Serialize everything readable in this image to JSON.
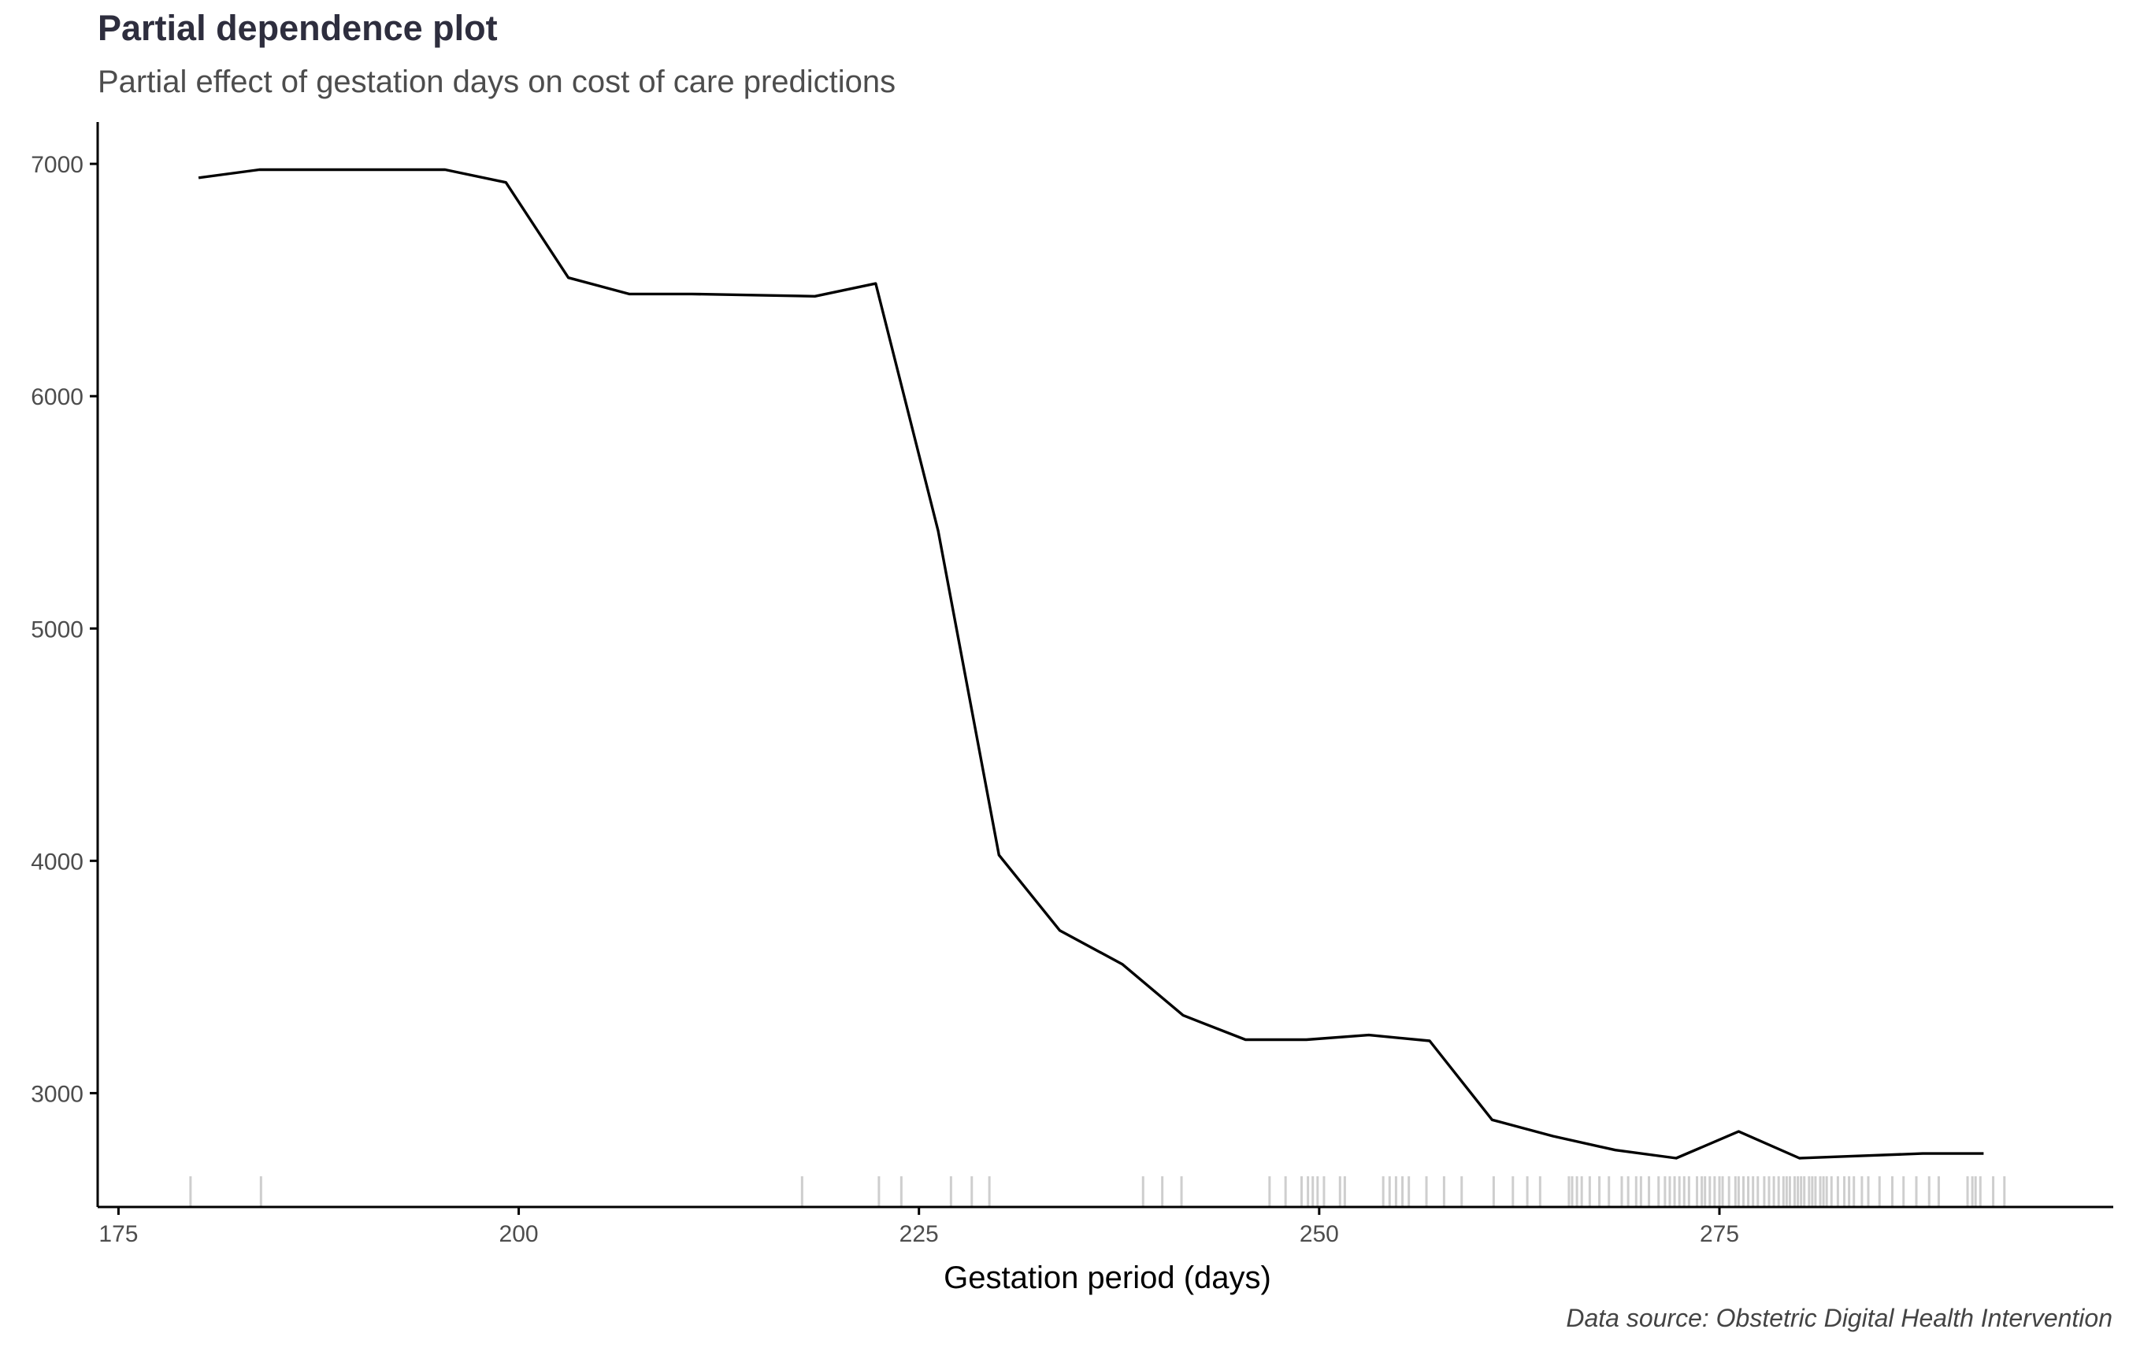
{
  "title": "Partial dependence plot",
  "subtitle": "Partial effect of gestation days on cost of care predictions",
  "caption": "Data source: Obstetric Digital Health Intervention",
  "chart_data": {
    "type": "line",
    "xlabel": "Gestation period (days)",
    "ylabel": "",
    "xlim": [
      173.7,
      299.6
    ],
    "ylim": [
      2510,
      7180
    ],
    "xticks": [
      175,
      200,
      225,
      250,
      275
    ],
    "yticks": [
      3000,
      4000,
      5000,
      6000,
      7000
    ],
    "grid": false,
    "series": [
      {
        "x": [
          180,
          183.8,
          187.7,
          191.5,
          195.4,
          199.2,
          203.1,
          206.9,
          210.8,
          214.6,
          218.5,
          222.3,
          226.2,
          230,
          233.8,
          237.7,
          241.5,
          245.4,
          249.2,
          253.1,
          256.9,
          260.8,
          264.6,
          268.5,
          272.3,
          276.2,
          280,
          283.8,
          287.7,
          291.5
        ],
        "y": [
          6940,
          6975,
          6975,
          6975,
          6975,
          6920,
          6510,
          6440,
          6440,
          6435,
          6430,
          6485,
          5420,
          4025,
          3700,
          3555,
          3335,
          3230,
          3230,
          3250,
          3225,
          2885,
          2815,
          2755,
          2720,
          2835,
          2720,
          2730,
          2740,
          2740
        ]
      }
    ],
    "rug_x": [
      179.5,
      183.9,
      217.7,
      222.5,
      223.9,
      227,
      228.3,
      229.4,
      239,
      240.2,
      241.4,
      246.9,
      247.9,
      248.9,
      249.3,
      249.6,
      249.9,
      250.3,
      251.3,
      251.6,
      254,
      254.4,
      254.8,
      255.2,
      255.6,
      256.7,
      257.8,
      258.9,
      260.9,
      262.1,
      263,
      263.8,
      265.6,
      265.8,
      266.1,
      266.4,
      266.9,
      267.5,
      268.1,
      268.9,
      269.3,
      269.8,
      270.1,
      270.6,
      271.2,
      271.6,
      271.9,
      272.2,
      272.5,
      272.8,
      273.1,
      273.6,
      273.9,
      274.1,
      274.4,
      274.7,
      275,
      275.2,
      275.6,
      276,
      276.2,
      276.5,
      276.8,
      277.1,
      277.4,
      277.8,
      278.1,
      278.4,
      278.7,
      279,
      279.2,
      279.4,
      279.7,
      279.9,
      280.1,
      280.3,
      280.6,
      280.8,
      281,
      281.3,
      281.5,
      281.7,
      282,
      282.4,
      282.8,
      283.1,
      283.4,
      283.9,
      284.3,
      285,
      285.8,
      286.5,
      287.3,
      288.1,
      288.7,
      290.5,
      290.8,
      291,
      291.3,
      292.1,
      292.8
    ],
    "colors": {
      "line": "#000000",
      "rug": "#a6a6a6",
      "axis": "#000000",
      "tick_label": "#4d4d4d"
    }
  }
}
